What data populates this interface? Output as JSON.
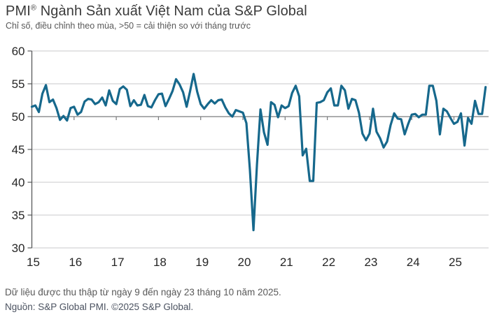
{
  "header": {
    "title_prefix": "PMI",
    "title_reg": "®",
    "title_rest": " Ngành Sản xuất Việt Nam của S&P Global",
    "subtitle": "Chỉ số, điều chỉnh theo mùa, >50 = cải thiện so với tháng trước"
  },
  "footer": {
    "note": "Dữ liệu được thu thập từ ngày 9 đến ngày 23 tháng 10 năm 2025.",
    "source": "Nguồn: S&P Global PMI. ©2025 S&P Global."
  },
  "chart_data": {
    "type": "line",
    "title": "PMI® Ngành Sản xuất Việt Nam của S&P Global",
    "subtitle": "Chỉ số, điều chỉnh theo mùa, >50 = cải thiện so với tháng trước",
    "xlabel": "",
    "ylabel": "",
    "ylim": [
      30,
      60
    ],
    "yticks": [
      60,
      55,
      50,
      45,
      40,
      35,
      30
    ],
    "baseline": 50,
    "grid": "horizontal",
    "legend": "none",
    "x_start": "2015-01",
    "x_end": "2025-10",
    "frequency": "monthly",
    "xtick_labels": [
      "15",
      "16",
      "17",
      "18",
      "19",
      "20",
      "21",
      "22",
      "23",
      "24",
      "25"
    ],
    "series": [
      {
        "name": "PMI ngành sản xuất Việt Nam",
        "color": "#16688C",
        "values": [
          51.5,
          51.7,
          50.7,
          53.5,
          54.8,
          52.2,
          52.6,
          51.3,
          49.5,
          50.1,
          49.4,
          51.3,
          51.5,
          50.3,
          50.7,
          52.3,
          52.7,
          52.6,
          51.9,
          52.2,
          52.9,
          51.7,
          54.0,
          52.4,
          51.9,
          54.2,
          54.6,
          54.1,
          51.6,
          52.5,
          51.7,
          51.8,
          53.3,
          51.6,
          51.4,
          52.5,
          53.4,
          53.5,
          51.6,
          52.7,
          53.9,
          55.7,
          54.9,
          53.7,
          51.5,
          53.9,
          56.5,
          53.8,
          51.9,
          51.2,
          51.9,
          52.5,
          52.0,
          52.5,
          52.6,
          51.4,
          50.5,
          50.0,
          51.0,
          50.8,
          50.6,
          49.0,
          41.9,
          32.7,
          42.7,
          51.1,
          47.6,
          45.7,
          52.2,
          51.8,
          49.9,
          51.7,
          51.3,
          51.6,
          53.6,
          54.7,
          53.1,
          44.1,
          45.1,
          40.2,
          40.2,
          52.1,
          52.2,
          52.5,
          53.7,
          54.3,
          51.7,
          51.7,
          54.7,
          54.0,
          51.2,
          52.7,
          52.5,
          50.6,
          47.4,
          46.4,
          47.4,
          51.2,
          47.7,
          46.7,
          45.3,
          46.2,
          48.7,
          50.5,
          49.7,
          49.6,
          47.3,
          48.9,
          50.3,
          50.4,
          49.9,
          50.3,
          50.3,
          54.7,
          54.7,
          52.4,
          47.3,
          51.2,
          50.8,
          49.8,
          48.9,
          49.2,
          50.5,
          45.6,
          49.8,
          48.9,
          52.4,
          50.4,
          50.4,
          54.5
        ]
      }
    ]
  }
}
